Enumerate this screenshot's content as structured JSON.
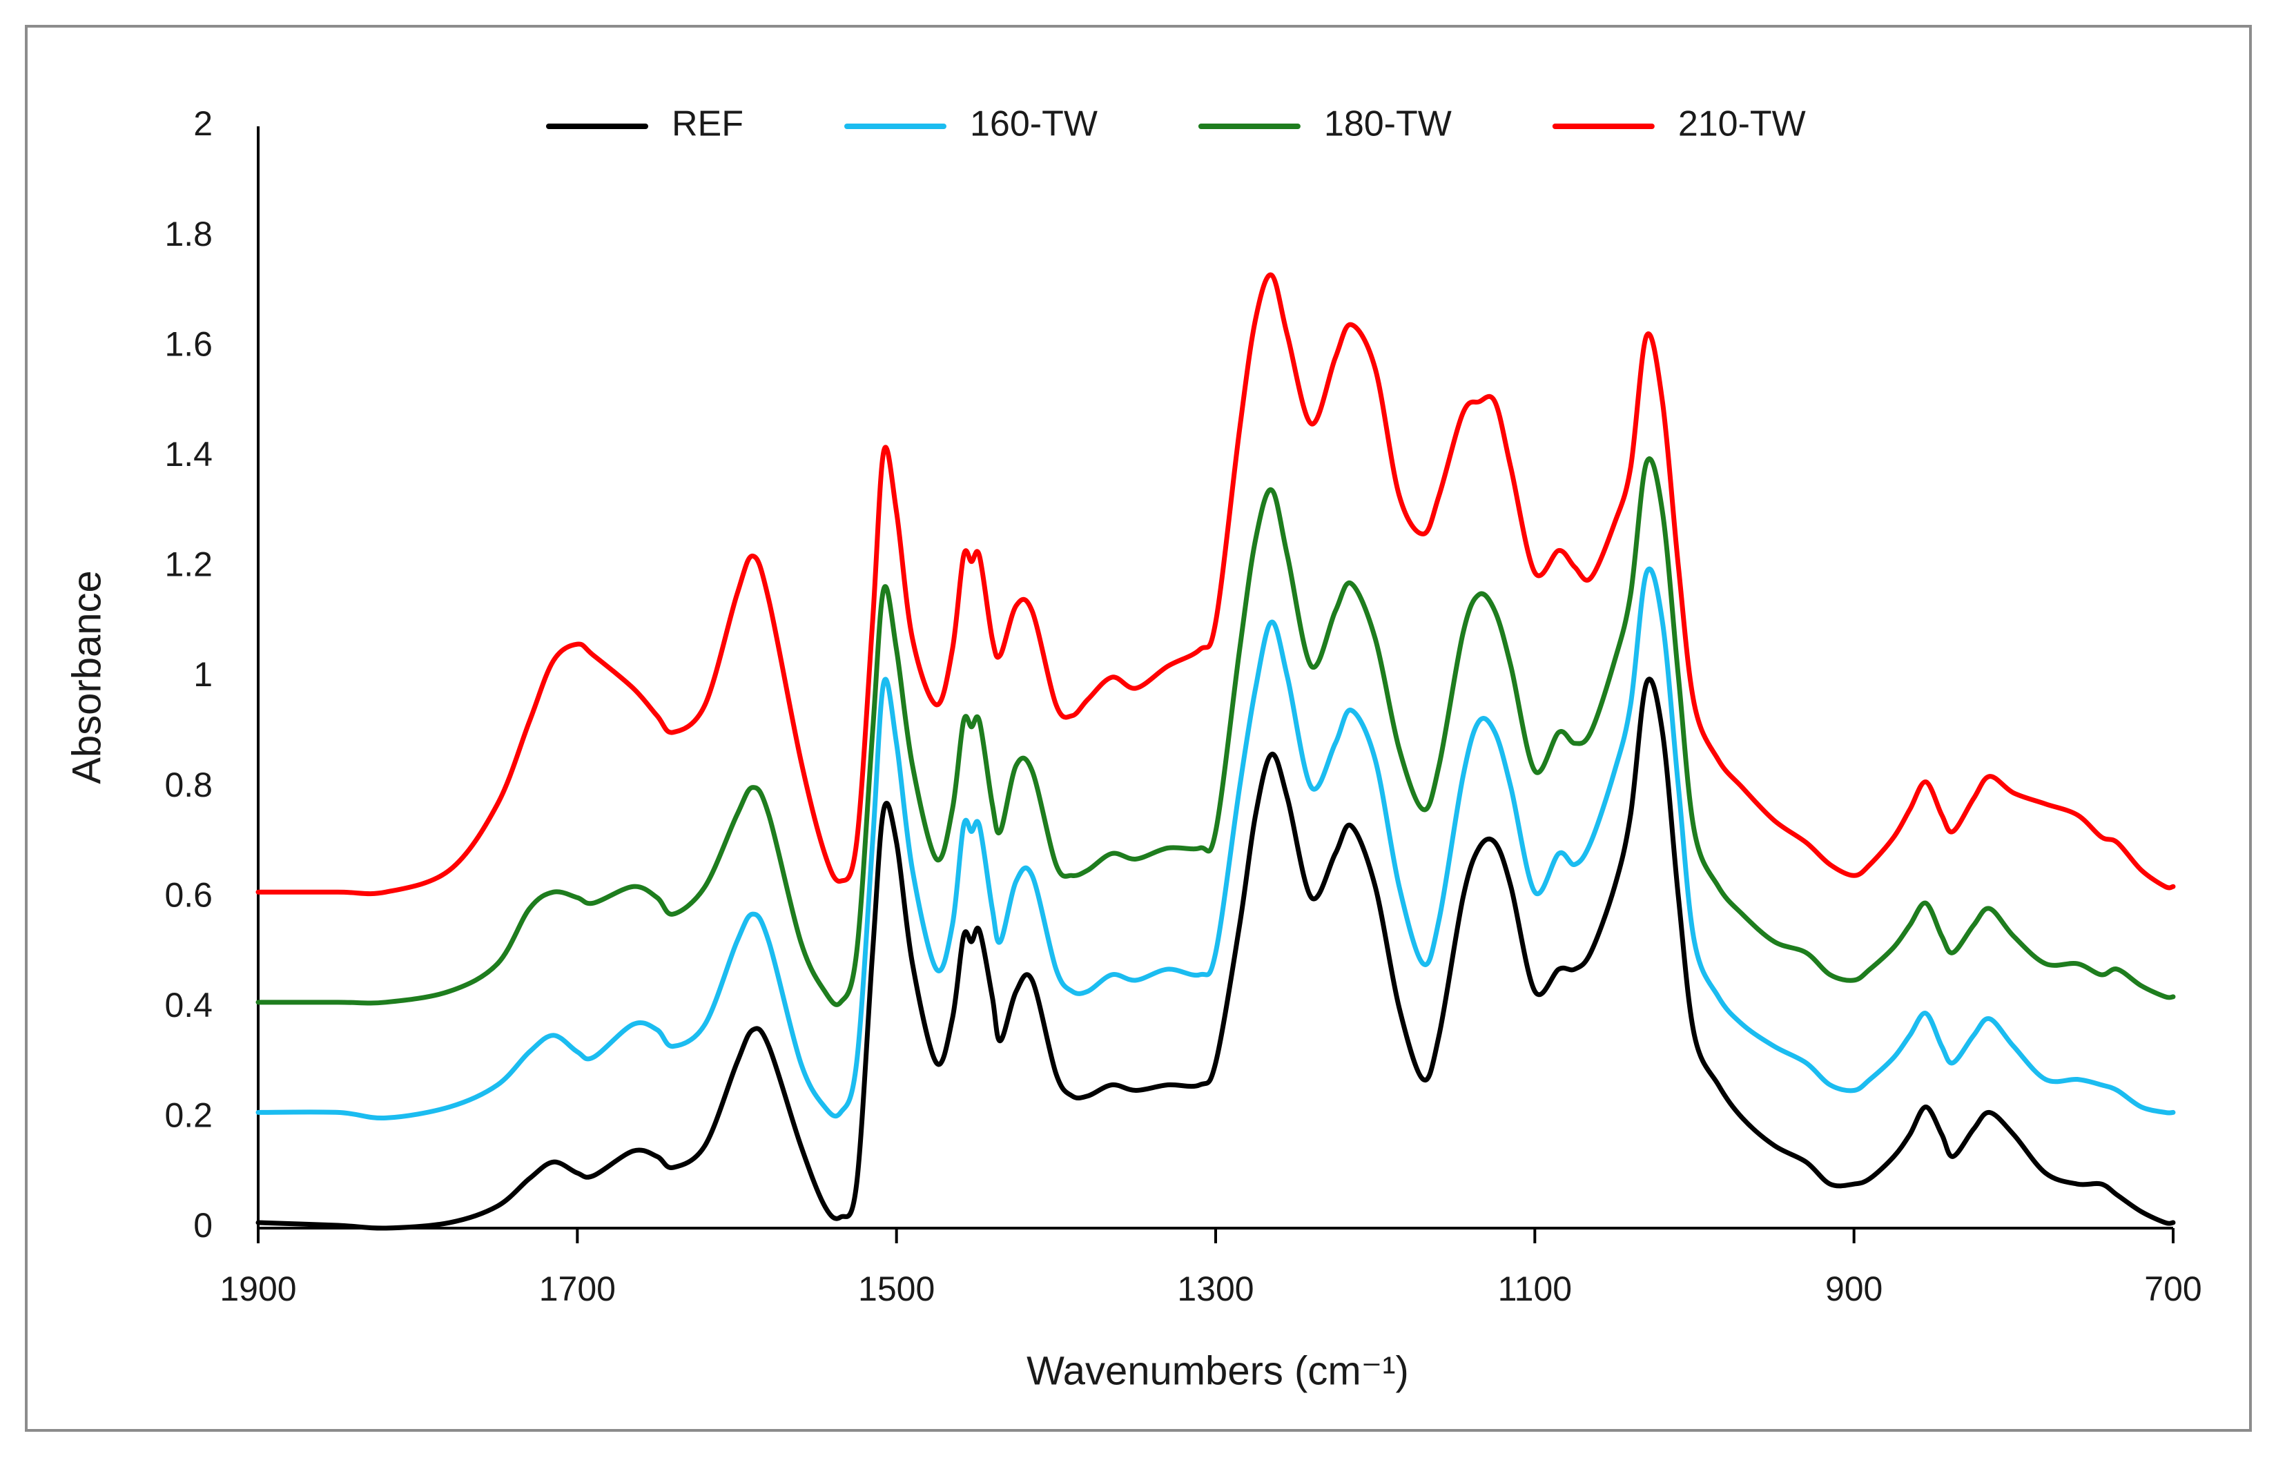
{
  "chart_data": {
    "type": "line",
    "xlabel": "Wavenumbers (cm⁻¹)",
    "ylabel": "Absorbance",
    "xlim": [
      1900,
      700
    ],
    "ylim": [
      0,
      2
    ],
    "xticks": [
      1900,
      1700,
      1500,
      1300,
      1100,
      900,
      700
    ],
    "yticks": [
      0,
      0.2,
      0.4,
      0.6,
      0.8,
      1,
      1.2,
      1.4,
      1.6,
      1.8,
      2
    ],
    "grid": false,
    "legend": "top",
    "x": [
      1900,
      1850,
      1820,
      1780,
      1750,
      1730,
      1715,
      1700,
      1690,
      1665,
      1650,
      1640,
      1620,
      1600,
      1590,
      1580,
      1560,
      1545,
      1535,
      1525,
      1515,
      1508,
      1500,
      1490,
      1475,
      1465,
      1458,
      1453,
      1448,
      1440,
      1435,
      1425,
      1415,
      1400,
      1390,
      1380,
      1365,
      1350,
      1330,
      1310,
      1300,
      1285,
      1275,
      1265,
      1255,
      1240,
      1225,
      1215,
      1200,
      1185,
      1170,
      1160,
      1145,
      1135,
      1125,
      1115,
      1100,
      1085,
      1075,
      1065,
      1050,
      1040,
      1030,
      1020,
      1010,
      1000,
      985,
      970,
      950,
      930,
      915,
      900,
      890,
      875,
      865,
      855,
      845,
      838,
      825,
      815,
      800,
      780,
      760,
      745,
      735,
      720,
      705,
      700
    ],
    "series": [
      {
        "name": "REF",
        "color": "#000000",
        "values": [
          0.01,
          0.005,
          0.0,
          0.01,
          0.04,
          0.09,
          0.12,
          0.1,
          0.095,
          0.14,
          0.13,
          0.11,
          0.15,
          0.3,
          0.36,
          0.33,
          0.15,
          0.04,
          0.02,
          0.08,
          0.5,
          0.76,
          0.7,
          0.48,
          0.3,
          0.38,
          0.53,
          0.52,
          0.54,
          0.42,
          0.34,
          0.43,
          0.45,
          0.28,
          0.24,
          0.24,
          0.26,
          0.25,
          0.26,
          0.26,
          0.3,
          0.55,
          0.75,
          0.86,
          0.78,
          0.6,
          0.68,
          0.73,
          0.62,
          0.4,
          0.27,
          0.35,
          0.6,
          0.69,
          0.7,
          0.62,
          0.43,
          0.47,
          0.47,
          0.5,
          0.62,
          0.75,
          0.99,
          0.9,
          0.6,
          0.35,
          0.26,
          0.2,
          0.15,
          0.12,
          0.08,
          0.08,
          0.09,
          0.13,
          0.17,
          0.22,
          0.17,
          0.13,
          0.18,
          0.21,
          0.17,
          0.1,
          0.08,
          0.08,
          0.06,
          0.03,
          0.01,
          0.01
        ]
      },
      {
        "name": "160-TW",
        "color": "#1bbcf0",
        "values": [
          0.21,
          0.21,
          0.2,
          0.22,
          0.26,
          0.32,
          0.35,
          0.32,
          0.31,
          0.37,
          0.36,
          0.33,
          0.37,
          0.52,
          0.57,
          0.52,
          0.3,
          0.22,
          0.21,
          0.3,
          0.7,
          0.99,
          0.88,
          0.65,
          0.47,
          0.55,
          0.73,
          0.72,
          0.73,
          0.58,
          0.52,
          0.63,
          0.64,
          0.47,
          0.43,
          0.43,
          0.46,
          0.45,
          0.47,
          0.46,
          0.5,
          0.8,
          0.98,
          1.1,
          1.0,
          0.8,
          0.88,
          0.94,
          0.85,
          0.62,
          0.48,
          0.56,
          0.82,
          0.92,
          0.9,
          0.8,
          0.61,
          0.68,
          0.66,
          0.7,
          0.83,
          0.95,
          1.19,
          1.1,
          0.8,
          0.52,
          0.42,
          0.37,
          0.33,
          0.3,
          0.26,
          0.25,
          0.27,
          0.31,
          0.35,
          0.39,
          0.33,
          0.3,
          0.35,
          0.38,
          0.33,
          0.27,
          0.27,
          0.26,
          0.25,
          0.22,
          0.21,
          0.21
        ]
      },
      {
        "name": "180-TW",
        "color": "#1e7d1e",
        "values": [
          0.41,
          0.41,
          0.41,
          0.43,
          0.48,
          0.58,
          0.61,
          0.6,
          0.59,
          0.62,
          0.6,
          0.57,
          0.62,
          0.75,
          0.8,
          0.75,
          0.52,
          0.43,
          0.41,
          0.5,
          0.9,
          1.16,
          1.05,
          0.84,
          0.67,
          0.76,
          0.92,
          0.91,
          0.92,
          0.77,
          0.72,
          0.84,
          0.83,
          0.66,
          0.64,
          0.65,
          0.68,
          0.67,
          0.69,
          0.69,
          0.72,
          1.05,
          1.25,
          1.34,
          1.22,
          1.02,
          1.12,
          1.17,
          1.07,
          0.87,
          0.76,
          0.84,
          1.08,
          1.15,
          1.12,
          1.02,
          0.83,
          0.9,
          0.88,
          0.9,
          1.03,
          1.15,
          1.39,
          1.3,
          1.0,
          0.72,
          0.62,
          0.57,
          0.52,
          0.5,
          0.46,
          0.45,
          0.47,
          0.51,
          0.55,
          0.59,
          0.53,
          0.5,
          0.55,
          0.58,
          0.53,
          0.48,
          0.48,
          0.46,
          0.47,
          0.44,
          0.42,
          0.42
        ]
      },
      {
        "name": "210-TW",
        "color": "#ff0000",
        "values": [
          0.61,
          0.61,
          0.61,
          0.65,
          0.77,
          0.92,
          1.03,
          1.06,
          1.04,
          0.98,
          0.93,
          0.9,
          0.95,
          1.15,
          1.22,
          1.14,
          0.85,
          0.68,
          0.63,
          0.7,
          1.1,
          1.41,
          1.3,
          1.07,
          0.95,
          1.05,
          1.22,
          1.21,
          1.22,
          1.07,
          1.04,
          1.13,
          1.12,
          0.95,
          0.93,
          0.96,
          1.0,
          0.98,
          1.02,
          1.05,
          1.1,
          1.45,
          1.65,
          1.73,
          1.62,
          1.46,
          1.58,
          1.64,
          1.56,
          1.33,
          1.26,
          1.33,
          1.48,
          1.5,
          1.5,
          1.38,
          1.19,
          1.23,
          1.2,
          1.18,
          1.28,
          1.38,
          1.62,
          1.5,
          1.2,
          0.95,
          0.85,
          0.8,
          0.74,
          0.7,
          0.66,
          0.64,
          0.66,
          0.71,
          0.76,
          0.81,
          0.75,
          0.72,
          0.78,
          0.82,
          0.79,
          0.77,
          0.75,
          0.71,
          0.7,
          0.65,
          0.62,
          0.62
        ]
      }
    ]
  }
}
